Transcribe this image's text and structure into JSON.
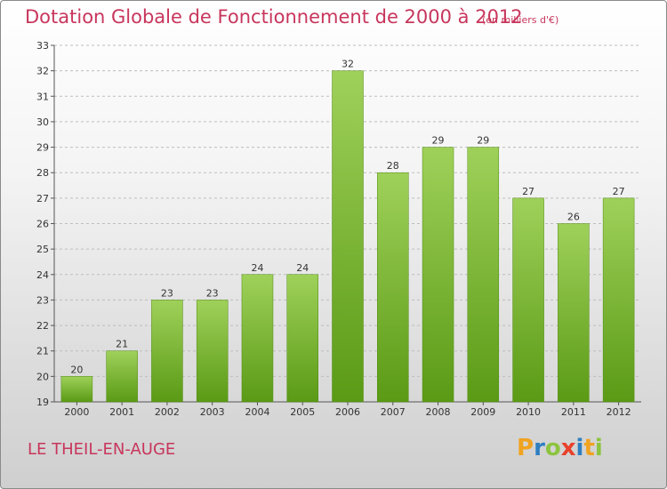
{
  "header": {
    "title": "Dotation Globale de Fonctionnement de 2000 à 2012",
    "subtitle": "(en milliers d'€)"
  },
  "footer": {
    "commune": "LE THEIL-EN-AUGE",
    "logo_letters": [
      "P",
      "r",
      "o",
      "x",
      "i",
      "t",
      "i"
    ],
    "logo_colors": [
      "#f0a320",
      "#2f7fc1",
      "#8dc43f",
      "#e8412c",
      "#2f7fc1",
      "#f0a320",
      "#8dc43f"
    ]
  },
  "colors": {
    "title": "#c8365c",
    "bar_top": "#9fd15a",
    "bar_bottom": "#5a9a15",
    "axis_text": "#333333",
    "grid": "#bdbdbd"
  },
  "chart_data": {
    "type": "bar",
    "title": "Dotation Globale de Fonctionnement de 2000 à 2012",
    "subtitle": "(en milliers d'€)",
    "xlabel": "",
    "ylabel": "",
    "categories": [
      "2000",
      "2001",
      "2002",
      "2003",
      "2004",
      "2005",
      "2006",
      "2007",
      "2008",
      "2009",
      "2010",
      "2011",
      "2012"
    ],
    "values": [
      20,
      21,
      23,
      23,
      24,
      24,
      32,
      28,
      29,
      29,
      27,
      26,
      27
    ],
    "ylim": [
      19,
      33
    ],
    "yticks": [
      19,
      20,
      21,
      22,
      23,
      24,
      25,
      26,
      27,
      28,
      29,
      30,
      31,
      32,
      33
    ],
    "grid": "horizontal dashed",
    "legend": "none",
    "data_labels": true
  }
}
